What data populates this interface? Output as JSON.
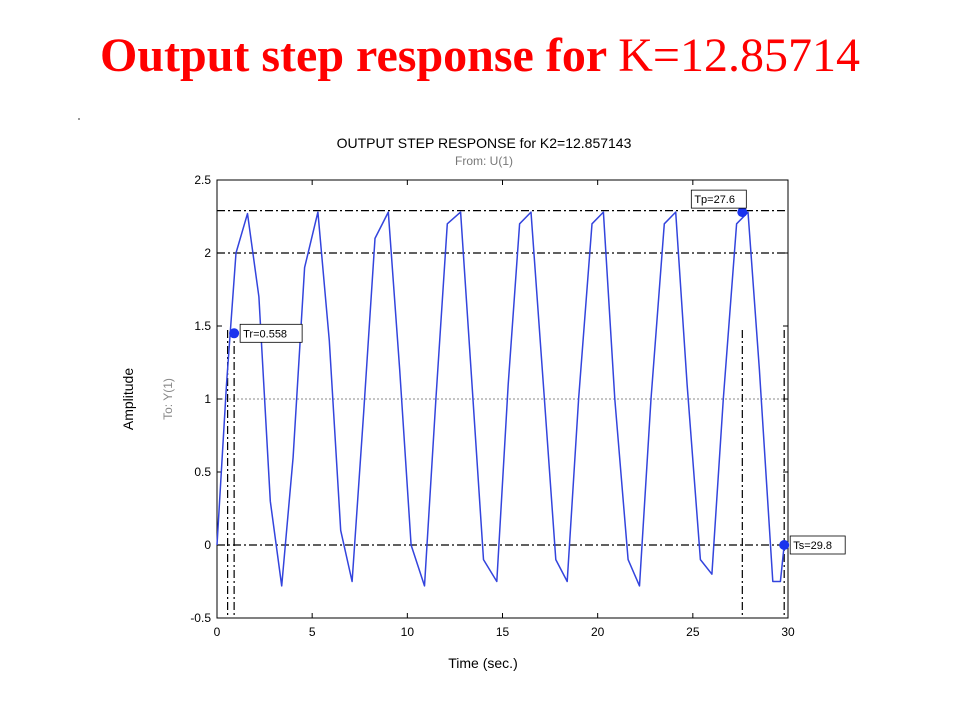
{
  "slide": {
    "title_bold": "Output step response for ",
    "title_normal": "K=12.85714"
  },
  "chart_data": {
    "type": "line",
    "title": "OUTPUT STEP RESPONSE for K2=12.857143",
    "subtitle": "From: U(1)",
    "xlabel": "Time (sec.)",
    "ylabel": "Amplitude",
    "ylabel2": "To: Y(1)",
    "xlim": [
      0,
      30
    ],
    "ylim": [
      -0.5,
      2.5
    ],
    "xticks": [
      0,
      5,
      10,
      15,
      20,
      25,
      30
    ],
    "yticks": [
      -0.5,
      0,
      0.5,
      1,
      1.5,
      2,
      2.5
    ],
    "xtick_labels": [
      "0",
      "5",
      "10",
      "15",
      "20",
      "25",
      "30"
    ],
    "ytick_labels": [
      "-0.5",
      "0",
      "0.5",
      "1",
      "1.5",
      "2",
      "2.5"
    ],
    "series": [
      {
        "color": "#3344dd",
        "x": [
          0,
          0.5,
          1.0,
          1.6,
          2.2,
          2.8,
          3.4,
          4.0,
          4.6,
          5.3,
          5.9,
          6.5,
          7.1,
          7.7,
          8.3,
          9.0,
          9.6,
          10.2,
          10.9,
          11.5,
          12.1,
          12.8,
          13.4,
          14.0,
          14.7,
          15.3,
          15.9,
          16.5,
          17.2,
          17.8,
          18.4,
          19.0,
          19.7,
          20.3,
          20.9,
          21.6,
          22.2,
          22.8,
          23.5,
          24.1,
          24.7,
          25.4,
          26.0,
          26.6,
          27.3,
          27.9,
          28.5,
          29.2,
          29.6,
          29.8
        ],
        "y": [
          0,
          1.1,
          2.0,
          2.27,
          1.7,
          0.3,
          -0.28,
          0.6,
          1.9,
          2.28,
          1.4,
          0.1,
          -0.25,
          0.9,
          2.1,
          2.28,
          1.2,
          0.0,
          -0.28,
          1.0,
          2.2,
          2.28,
          1.1,
          -0.1,
          -0.25,
          1.1,
          2.2,
          2.28,
          1.0,
          -0.1,
          -0.25,
          1.0,
          2.2,
          2.28,
          1.0,
          -0.1,
          -0.28,
          1.0,
          2.2,
          2.28,
          1.1,
          -0.1,
          -0.2,
          1.0,
          2.2,
          2.28,
          1.2,
          -0.25,
          -0.25,
          0.0
        ]
      }
    ],
    "reference_lines": {
      "dashdot_y": [
        2.29,
        2.0,
        0.0
      ],
      "dotted_y": [
        1.0
      ],
      "dashdot_x": [
        0.558,
        0.9,
        27.6,
        29.8
      ]
    },
    "markers": [
      {
        "x": 0.9,
        "y": 1.45,
        "label": "Tr=0.558"
      },
      {
        "x": 27.6,
        "y": 2.28,
        "label": "Tp=27.6"
      },
      {
        "x": 29.8,
        "y": 0.0,
        "label": "Ts=29.8"
      }
    ],
    "grid": false
  }
}
